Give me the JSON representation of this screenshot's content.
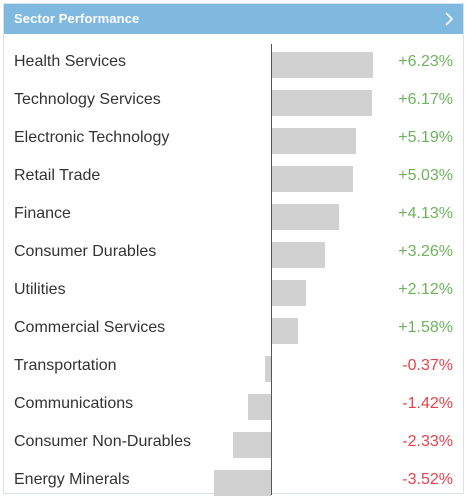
{
  "header": {
    "title": "Sector Performance",
    "chevron_icon": "chevron-right-icon"
  },
  "colors": {
    "header_bg": "#7fb9df",
    "positive": "#6cb35c",
    "negative": "#e2434c",
    "bar": "#d1d1d1"
  },
  "chart_data": {
    "type": "bar",
    "orientation": "horizontal",
    "categories": [
      "Health Services",
      "Technology Services",
      "Electronic Technology",
      "Retail Trade",
      "Finance",
      "Consumer Durables",
      "Utilities",
      "Commercial Services",
      "Transportation",
      "Communications",
      "Consumer Non-Durables",
      "Energy Minerals"
    ],
    "values": [
      6.23,
      6.17,
      5.19,
      5.03,
      4.13,
      3.26,
      2.12,
      1.58,
      -0.37,
      -1.42,
      -2.33,
      -3.52
    ],
    "labels": [
      "+6.23%",
      "+6.17%",
      "+5.19%",
      "+5.03%",
      "+4.13%",
      "+3.26%",
      "+2.12%",
      "+1.58%",
      "-0.37%",
      "-1.42%",
      "-2.33%",
      "-3.52%"
    ]
  }
}
